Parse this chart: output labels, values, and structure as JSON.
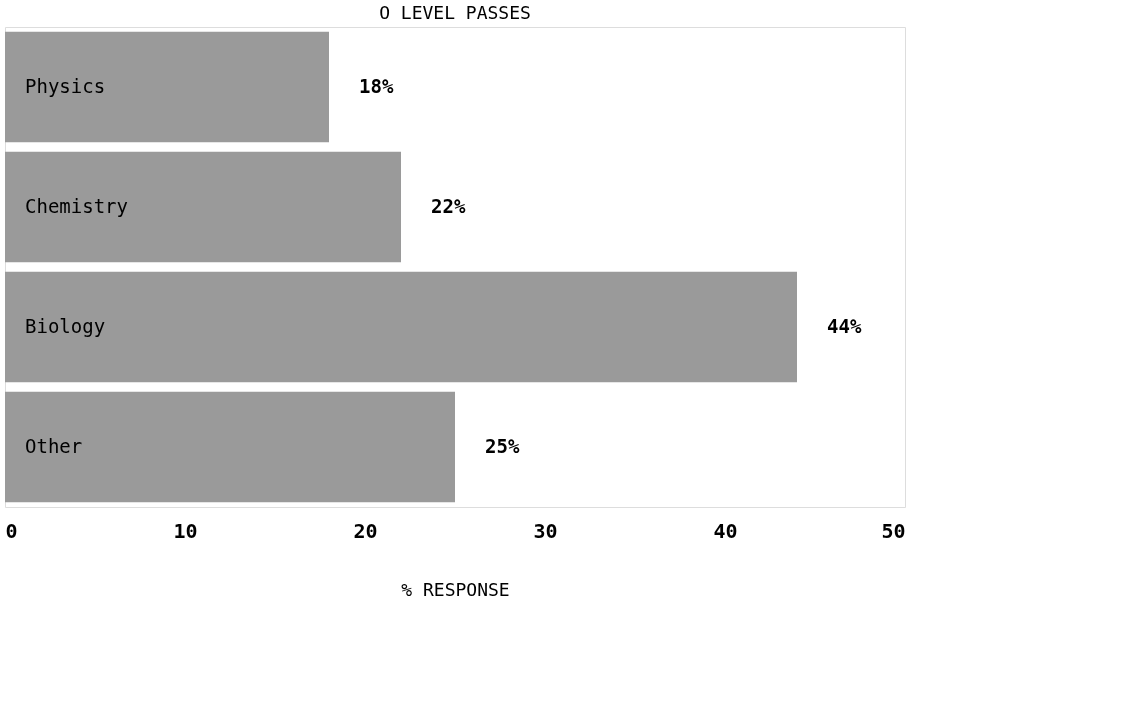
{
  "chart_data": {
    "type": "bar",
    "orientation": "horizontal",
    "title": "O LEVEL PASSES",
    "xlabel": "% RESPONSE",
    "categories": [
      "Physics",
      "Chemistry",
      "Biology",
      "Other"
    ],
    "values": [
      18,
      22,
      44,
      25
    ],
    "value_labels": [
      "18%",
      "22%",
      "44%",
      "25%"
    ],
    "color": "#9a9a9a",
    "xlim": [
      0,
      50
    ],
    "xticks": [
      0,
      10,
      20,
      30,
      40,
      50
    ],
    "grid": false
  }
}
